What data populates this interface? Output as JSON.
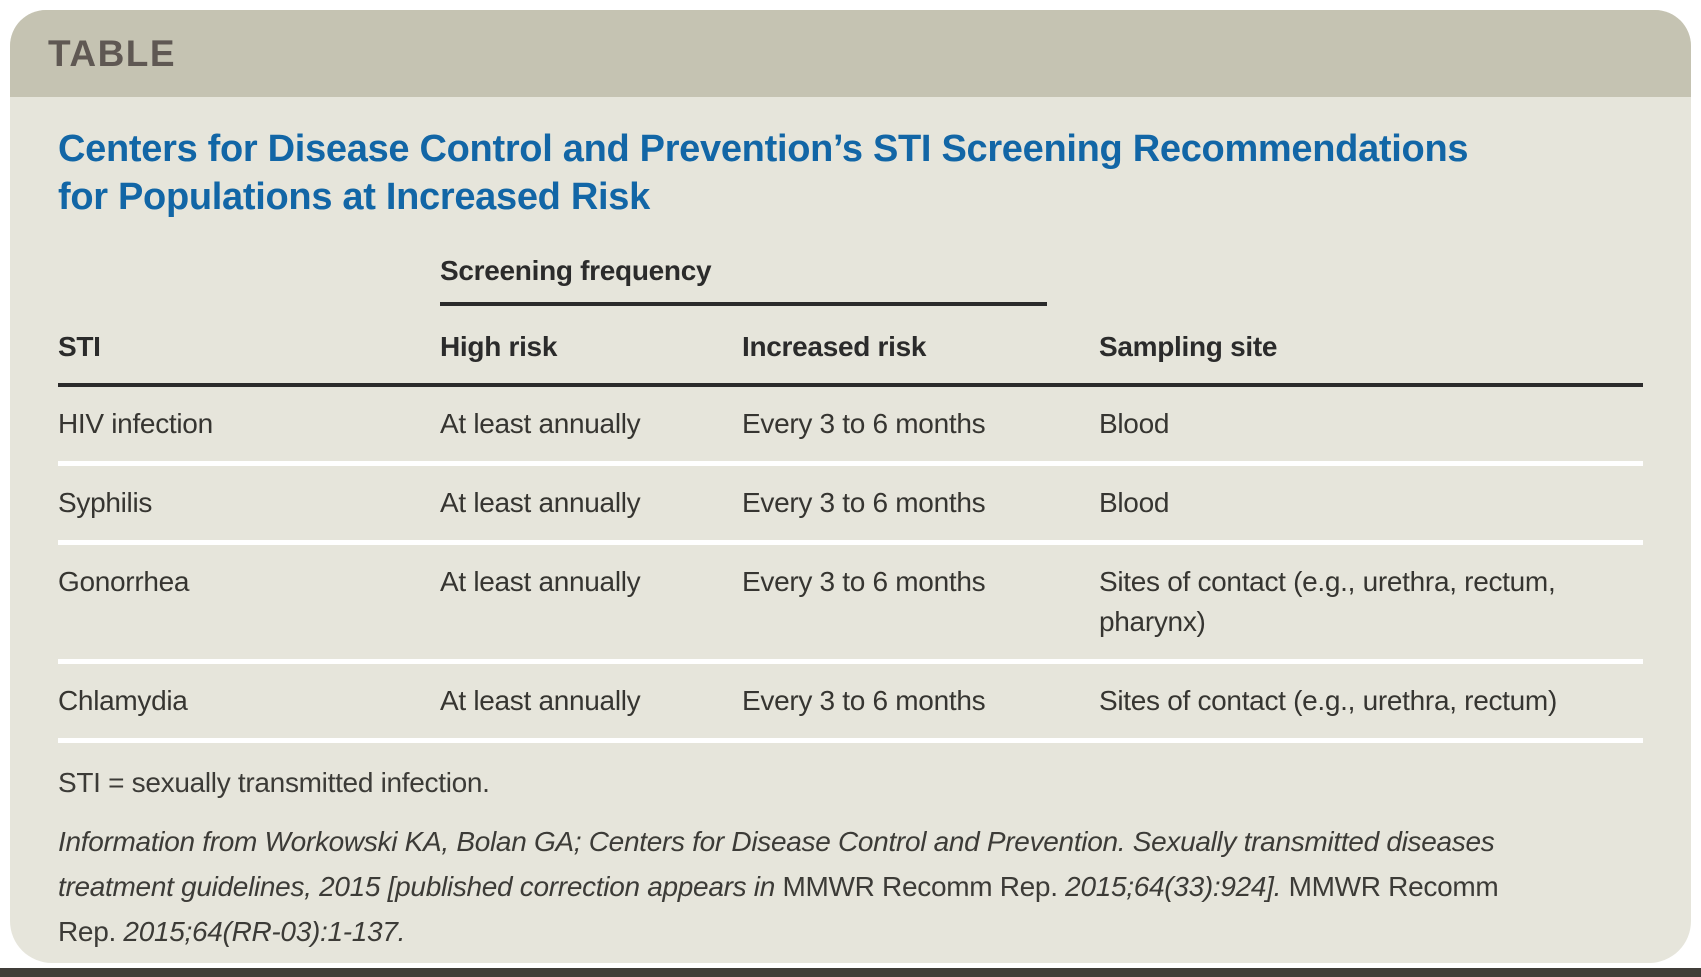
{
  "figure": {
    "kicker": "TABLE",
    "title_line1": "Centers for Disease Control and Prevention’s STI Screening Recommendations",
    "title_line2": "for Populations at Increased Risk"
  },
  "table": {
    "spanner_header": "Screening frequency",
    "columns": {
      "sti": "STI",
      "high_risk": "High risk",
      "increased_risk": "Increased risk",
      "sampling_site": "Sampling site"
    },
    "rows": [
      {
        "sti": "HIV infection",
        "high_risk": "At least annually",
        "increased_risk": "Every 3 to 6 months",
        "sampling_site": "Blood"
      },
      {
        "sti": "Syphilis",
        "high_risk": "At least annually",
        "increased_risk": "Every 3 to 6 months",
        "sampling_site": "Blood"
      },
      {
        "sti": "Gonorrhea",
        "high_risk": "At least annually",
        "increased_risk": "Every 3 to 6 months",
        "sampling_site": "Sites of contact (e.g., urethra, rectum, pharynx)"
      },
      {
        "sti": "Chlamydia",
        "high_risk": "At least annually",
        "increased_risk": "Every 3 to 6 months",
        "sampling_site": "Sites of contact (e.g., urethra, rectum)"
      }
    ]
  },
  "footnotes": {
    "abbreviation": "STI = sexually transmitted infection.",
    "citation_parts": [
      {
        "text": "Information from Workowski KA, Bolan GA; Centers for Disease Control and Prevention. Sexually transmitted diseases treatment guidelines, 2015 [published correction appears in ",
        "style": "italic"
      },
      {
        "text": "MMWR Recomm Rep.",
        "style": "roman"
      },
      {
        "text": " 2015;64(33):924]. ",
        "style": "italic"
      },
      {
        "text": "MMWR Recomm Rep.",
        "style": "roman"
      },
      {
        "text": " 2015;64(RR-03):1-137.",
        "style": "italic"
      }
    ]
  },
  "colors": {
    "kicker_bar": "#c5c3b2",
    "kicker_text": "#5f5853",
    "panel_background": "#e6e5db",
    "title_blue": "#1266a6",
    "body_text": "#363531",
    "header_rule": "#2b2b2b",
    "row_separator": "#ffffff",
    "bottom_bar": "#403e39",
    "page_background": "#ffffff"
  }
}
